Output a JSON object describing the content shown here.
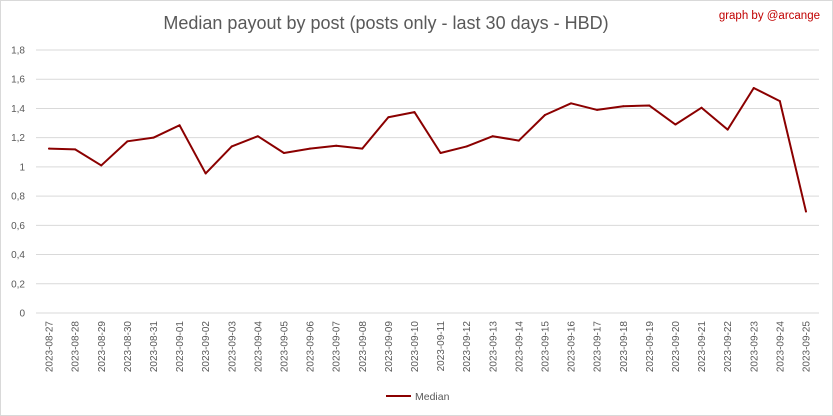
{
  "title": "Median payout by post (posts only - last 30 days - HBD)",
  "credit": "graph by @arcange",
  "colors": {
    "series": "#8b0000",
    "grid": "#d9d9d9",
    "credit": "#c00000",
    "text": "#595959"
  },
  "chart_data": {
    "type": "line",
    "title": "Median payout by post (posts only - last 30 days - HBD)",
    "xlabel": "",
    "ylabel": "",
    "ylim": [
      0,
      1.8
    ],
    "ytick_step": 0.2,
    "ytick_labels": [
      "0",
      "0,2",
      "0,4",
      "0,6",
      "0,8",
      "1",
      "1,2",
      "1,4",
      "1,6",
      "1,8"
    ],
    "grid": true,
    "legend": "bottom",
    "categories": [
      "2023-08-27",
      "2023-08-28",
      "2023-08-29",
      "2023-08-30",
      "2023-08-31",
      "2023-09-01",
      "2023-09-02",
      "2023-09-03",
      "2023-09-04",
      "2023-09-05",
      "2023-09-06",
      "2023-09-07",
      "2023-09-08",
      "2023-09-09",
      "2023-09-10",
      "2023-09-11",
      "2023-09-12",
      "2023-09-13",
      "2023-09-14",
      "2023-09-15",
      "2023-09-16",
      "2023-09-17",
      "2023-09-18",
      "2023-09-19",
      "2023-09-20",
      "2023-09-21",
      "2023-09-22",
      "2023-09-23",
      "2023-09-24",
      "2023-09-25"
    ],
    "series": [
      {
        "name": "Median",
        "values": [
          1.125,
          1.12,
          1.01,
          1.175,
          1.2,
          1.285,
          0.955,
          1.14,
          1.21,
          1.095,
          1.125,
          1.145,
          1.125,
          1.34,
          1.375,
          1.095,
          1.14,
          1.21,
          1.18,
          1.355,
          1.435,
          1.39,
          1.415,
          1.42,
          1.29,
          1.405,
          1.255,
          1.54,
          1.45,
          0.695
        ]
      }
    ]
  }
}
